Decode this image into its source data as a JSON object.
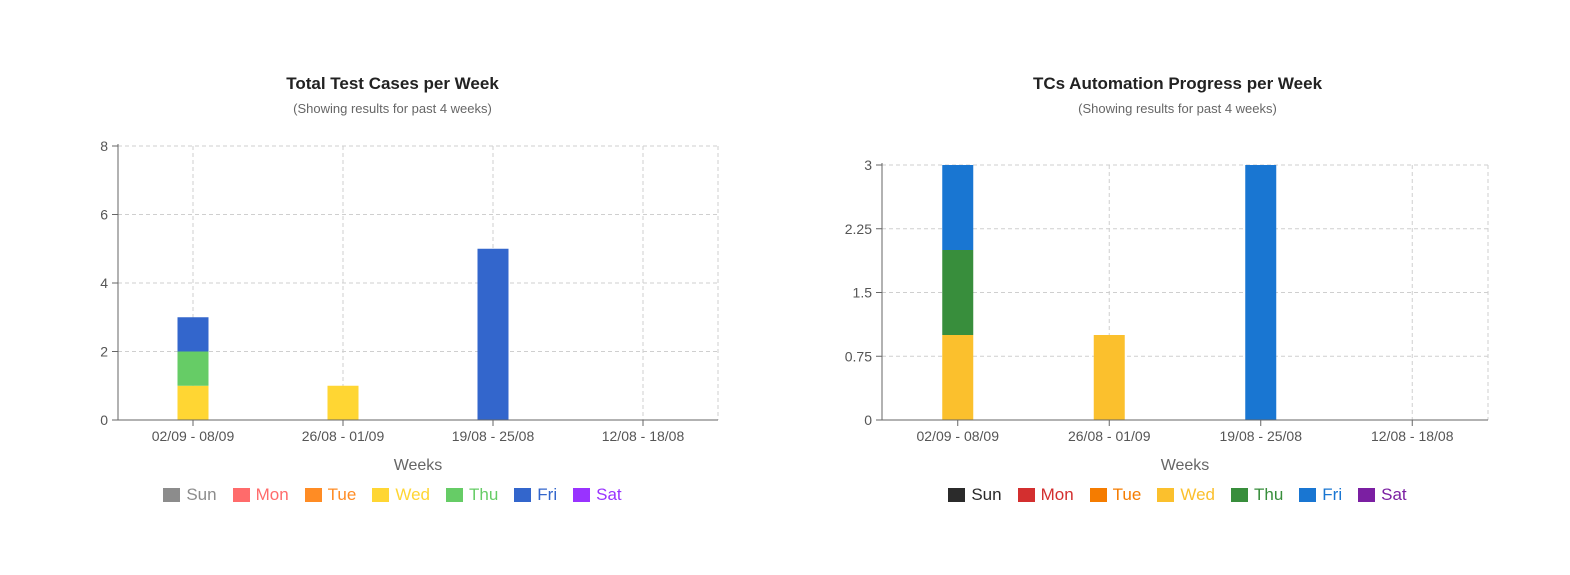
{
  "chart_data": [
    {
      "type": "bar",
      "stacked": true,
      "title": "Total Test Cases per Week",
      "subtitle": "(Showing results for past 4 weeks)",
      "xlabel": "Weeks",
      "ylabel": "",
      "ylim": [
        0,
        8
      ],
      "yticks": [
        "0",
        "2",
        "4",
        "6",
        "8"
      ],
      "grid": true,
      "legend_position": "bottom",
      "categories": [
        "02/09 - 08/09",
        "26/08 - 01/09",
        "19/08 - 25/08",
        "12/08 - 18/08"
      ],
      "series": [
        {
          "name": "Sun",
          "color": "#8c8c8c",
          "values": [
            0,
            0,
            0,
            0
          ]
        },
        {
          "name": "Mon",
          "color": "#ff6b6b",
          "values": [
            0,
            0,
            0,
            0
          ]
        },
        {
          "name": "Tue",
          "color": "#ff8c24",
          "values": [
            0,
            0,
            0,
            0
          ]
        },
        {
          "name": "Wed",
          "color": "#ffd633",
          "values": [
            1,
            1,
            0,
            0
          ]
        },
        {
          "name": "Thu",
          "color": "#66cc66",
          "values": [
            1,
            0,
            0,
            0
          ]
        },
        {
          "name": "Fri",
          "color": "#3366cc",
          "values": [
            1,
            0,
            5,
            0
          ]
        },
        {
          "name": "Sat",
          "color": "#9933ff",
          "values": [
            0,
            0,
            0,
            0
          ]
        }
      ]
    },
    {
      "type": "bar",
      "stacked": true,
      "title": "TCs Automation Progress per Week",
      "subtitle": "(Showing results for past 4 weeks)",
      "xlabel": "Weeks",
      "ylabel": "",
      "ylim": [
        0,
        3
      ],
      "yticks": [
        "0",
        "0.75",
        "1.5",
        "2.25",
        "3"
      ],
      "grid": true,
      "legend_position": "bottom",
      "categories": [
        "02/09 - 08/09",
        "26/08 - 01/09",
        "19/08 - 25/08",
        "12/08 - 18/08"
      ],
      "series": [
        {
          "name": "Sun",
          "color": "#2b2b2b",
          "values": [
            0,
            0,
            0,
            0
          ]
        },
        {
          "name": "Mon",
          "color": "#d32f2f",
          "values": [
            0,
            0,
            0,
            0
          ]
        },
        {
          "name": "Tue",
          "color": "#f57c00",
          "values": [
            0,
            0,
            0,
            0
          ]
        },
        {
          "name": "Wed",
          "color": "#fbc02d",
          "values": [
            1,
            1,
            0,
            0
          ]
        },
        {
          "name": "Thu",
          "color": "#388e3c",
          "values": [
            1,
            0,
            0,
            0
          ]
        },
        {
          "name": "Fri",
          "color": "#1976d2",
          "values": [
            1,
            0,
            3,
            0
          ]
        },
        {
          "name": "Sat",
          "color": "#7b1fa2",
          "values": [
            0,
            0,
            0,
            0
          ]
        }
      ]
    }
  ]
}
